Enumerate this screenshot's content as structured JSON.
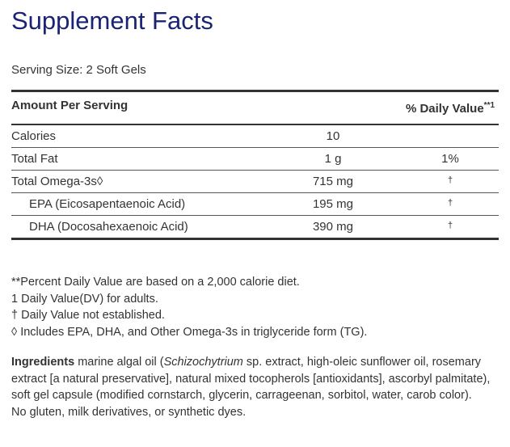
{
  "title": "Supplement Facts",
  "serving_size": "Serving Size: 2 Soft Gels",
  "table": {
    "header": [
      "Amount Per Serving",
      {
        "text": "% Daily Value",
        "sup": "**1"
      }
    ],
    "rows": [
      [
        "Calories",
        "10",
        null
      ],
      [
        "Total Fat",
        "1 g",
        "1%"
      ],
      [
        "Total Omega-3s◊",
        "715 mg",
        "†"
      ],
      [
        "EPA (Eicosapentaenoic Acid)",
        "195 mg",
        "†"
      ],
      [
        "DHA (Docosahexaenoic Acid)",
        "390 mg",
        "†"
      ]
    ]
  },
  "footnotes": [
    "**Percent Daily Value are based on a 2,000 calorie diet.",
    "1 Daily Value(DV) for adults.",
    "†  Daily Value not established.",
    "◊  Includes EPA, DHA, and Other Omega-3s in triglyceride form (TG)."
  ],
  "ingredients": {
    "label": "Ingredients",
    "parts": [
      "marine algal oil (",
      "Schizochytrium",
      " sp. extract, high-oleic sunflower oil, rosemary extract [a natural preservative], natural mixed tocopherols [antioxidants], ascorbyl palmitate), soft gel capsule (modified cornstarch, glycerin, carrageenan, sorbitol, water, carob color)."
    ],
    "free_from": "No gluten, milk derivatives, or synthetic dyes."
  }
}
